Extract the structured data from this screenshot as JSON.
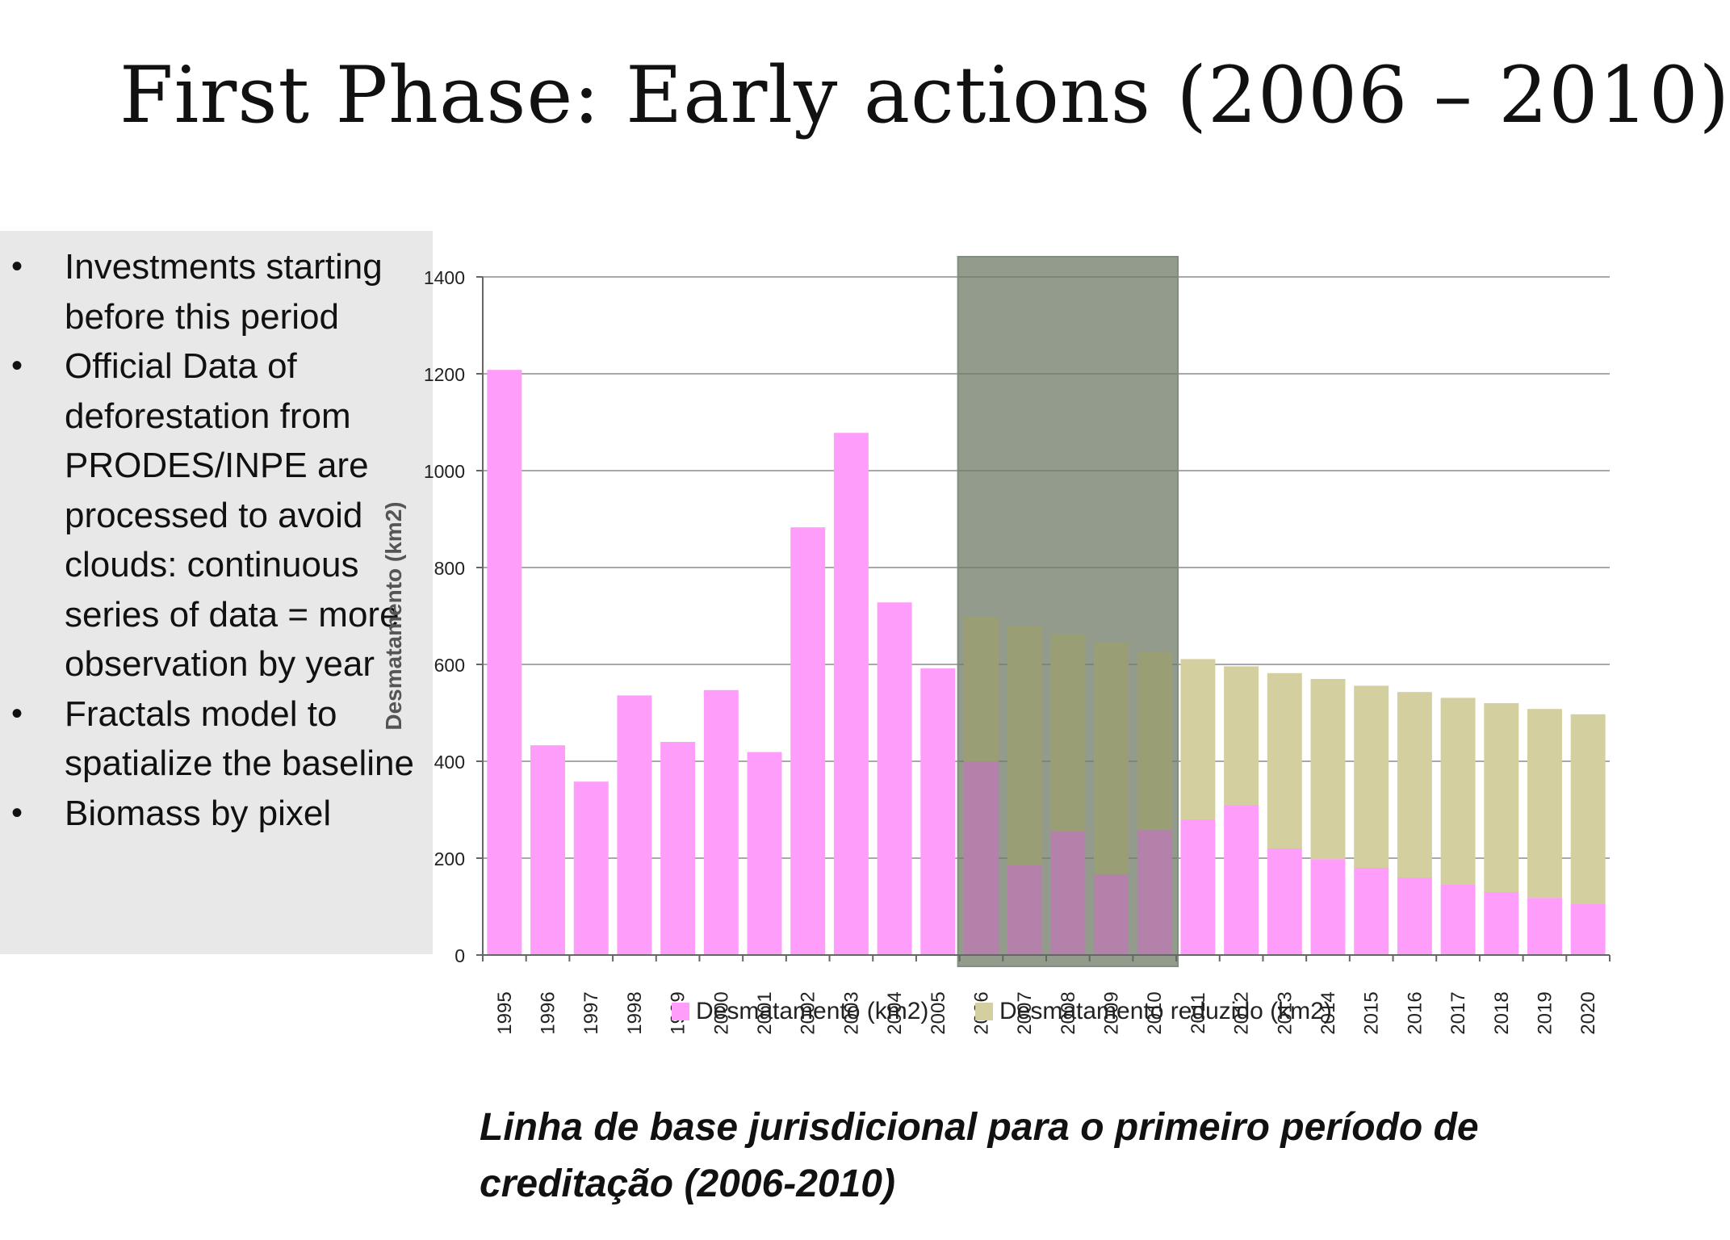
{
  "slide": {
    "title": "First Phase: Early actions (2006 – 2010)",
    "bullets": [
      "Investments starting before this period",
      "Official Data of deforestation from PRODES/INPE are processed to avoid clouds: continuous series of data = more observation by year",
      "Fractals model to spatialize the baseline",
      "Biomass by pixel"
    ],
    "caption": "Linha de base jurisdicional para o primeiro período de creditação (2006-2010)"
  },
  "chart_data": {
    "type": "bar",
    "stacked": true,
    "title": "",
    "xlabel": "",
    "ylabel": "Desmatamento (km2)",
    "ylim": [
      0,
      1400
    ],
    "yticks": [
      0,
      200,
      400,
      600,
      800,
      1000,
      1200,
      1400
    ],
    "grid": true,
    "legend_position": "bottom",
    "categories": [
      "1995",
      "1996",
      "1997",
      "1998",
      "1999",
      "2000",
      "2001",
      "2002",
      "2003",
      "2004",
      "2005",
      "2006",
      "2007",
      "2008",
      "2009",
      "2010",
      "2011",
      "2012",
      "2013",
      "2014",
      "2015",
      "2016",
      "2017",
      "2018",
      "2019",
      "2020"
    ],
    "series": [
      {
        "name": "Desmatamento (km2)",
        "color": "#ff9dfa",
        "values": [
          1208,
          433,
          358,
          536,
          440,
          547,
          419,
          883,
          1078,
          728,
          592,
          400,
          185,
          255,
          167,
          258,
          280,
          310,
          220,
          198,
          180,
          160,
          145,
          130,
          118,
          105
        ]
      },
      {
        "name": "Desmatamento reduzido (km2)",
        "color": "#d4cf9f",
        "values": [
          0,
          0,
          0,
          0,
          0,
          0,
          0,
          0,
          0,
          0,
          0,
          300,
          495,
          407,
          478,
          369,
          331,
          286,
          362,
          372,
          376,
          383,
          386,
          390,
          390,
          392
        ]
      }
    ],
    "highlight": {
      "from": "2006",
      "to": "2010",
      "color": "#9aa09a"
    },
    "colors": {
      "grid": "#8c8c8c",
      "axis": "#666666",
      "text": "#222222"
    }
  }
}
